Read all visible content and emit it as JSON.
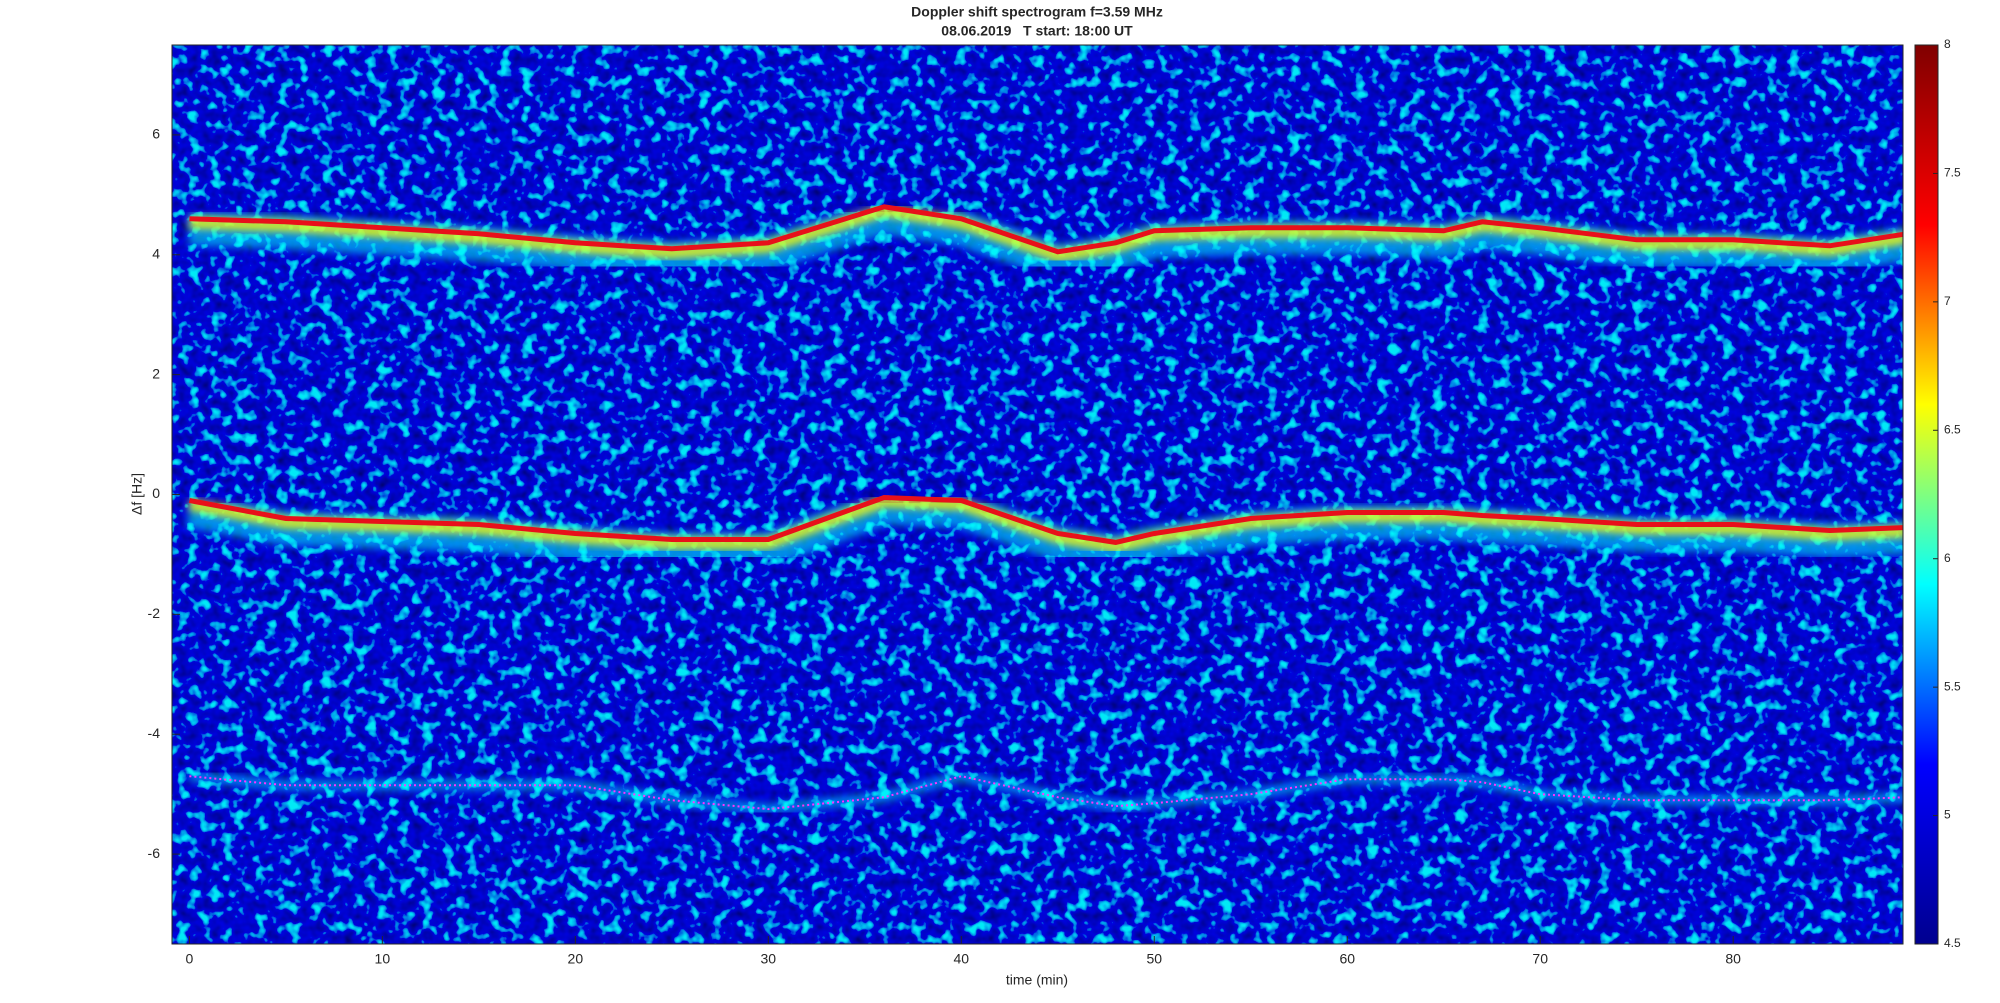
{
  "chart_data": {
    "type": "spectrogram",
    "title": "Doppler shift spectrogram f=3.59 MHz",
    "subtitle": "08.06.2019   T start: 18:00 UT",
    "x_label": "time (min)",
    "y_label": "Δf [Hz]",
    "xlim": [
      -0.9,
      88.8
    ],
    "ylim": [
      -7.5,
      7.5
    ],
    "xticks": [
      0,
      10,
      20,
      30,
      40,
      50,
      60,
      70,
      80
    ],
    "yticks": [
      -6,
      -4,
      -2,
      0,
      2,
      4,
      6
    ],
    "clim": [
      4.5,
      8
    ],
    "cticks": [
      4.5,
      5,
      5.5,
      6,
      6.5,
      7,
      7.5,
      8
    ],
    "colormap": [
      "#00008f",
      "#0000ff",
      "#00ffff",
      "#ffff00",
      "#ff0000",
      "#800000"
    ],
    "background": "#0a1fa8",
    "x": [
      0,
      5,
      10,
      15,
      20,
      25,
      30,
      33,
      36,
      40,
      45,
      48,
      50,
      55,
      60,
      65,
      67,
      70,
      75,
      80,
      85,
      89
    ],
    "series": [
      {
        "color": "#e8101a",
        "values": [
          4.6,
          4.55,
          4.45,
          4.35,
          4.2,
          4.1,
          4.2,
          4.5,
          4.8,
          4.6,
          4.05,
          4.2,
          4.4,
          4.45,
          4.45,
          4.4,
          4.55,
          4.45,
          4.25,
          4.25,
          4.15,
          4.35
        ]
      },
      {
        "color": "#e8101a",
        "values": [
          -0.1,
          -0.4,
          -0.45,
          -0.5,
          -0.65,
          -0.75,
          -0.75,
          -0.4,
          -0.05,
          -0.1,
          -0.65,
          -0.8,
          -0.65,
          -0.4,
          -0.3,
          -0.3,
          -0.35,
          -0.4,
          -0.5,
          -0.5,
          -0.6,
          -0.55
        ]
      },
      {
        "color": "#ff33ff",
        "values": [
          -4.7,
          -4.85,
          -4.85,
          -4.85,
          -4.85,
          -5.1,
          -5.25,
          -5.15,
          -5.05,
          -4.7,
          -5.05,
          -5.2,
          -5.15,
          -5.0,
          -4.75,
          -4.75,
          -4.8,
          -5.0,
          -5.1,
          -5.1,
          -5.1,
          -5.05
        ]
      }
    ]
  }
}
